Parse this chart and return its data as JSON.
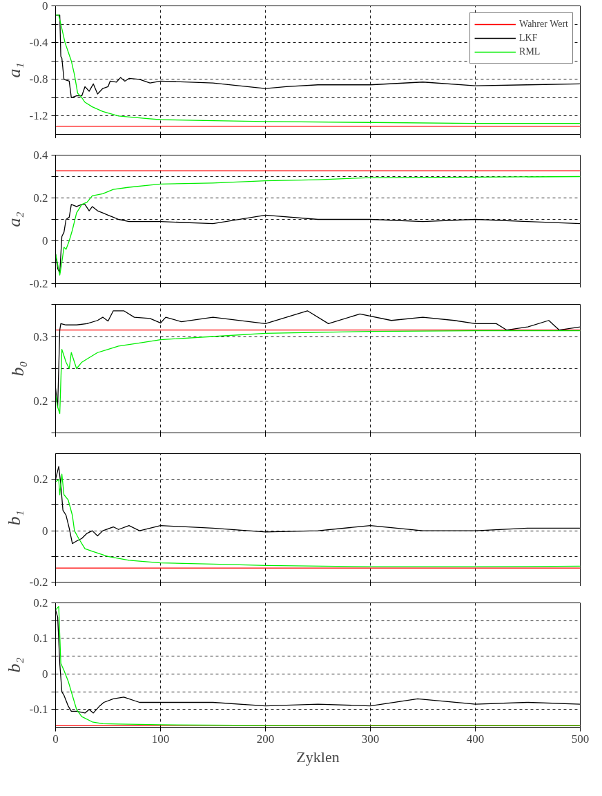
{
  "chart_data": [
    {
      "type": "line",
      "ylabel": "a₁",
      "xlim": [
        0,
        500
      ],
      "xticks": [
        0,
        100,
        200,
        300,
        400,
        500
      ],
      "ylim": [
        -1.4,
        0
      ],
      "yticks": [
        0,
        {
          "value": -0.2,
          "label": null
        },
        -0.4,
        {
          "value": -0.6,
          "label": null
        },
        -0.8,
        {
          "value": -1.0,
          "label": null
        },
        -1.2
      ],
      "grid": true,
      "legend": "top right",
      "tick_labels": "y",
      "series": [
        {
          "name": "Wahrer Wert",
          "color": "#ff0000",
          "x": [
            0,
            500
          ],
          "values": [
            -1.31,
            -1.31
          ]
        },
        {
          "name": "LKF",
          "color": "#000000",
          "x": [
            0,
            4,
            5,
            6,
            8,
            13,
            15,
            20,
            25,
            28,
            32,
            36,
            40,
            45,
            50,
            52,
            58,
            62,
            66,
            70,
            80,
            90,
            100,
            150,
            200,
            220,
            250,
            300,
            350,
            400,
            450,
            500
          ],
          "values": [
            -0.1,
            -0.1,
            -0.55,
            -0.57,
            -0.8,
            -0.82,
            -1.0,
            -0.98,
            -0.98,
            -0.88,
            -0.93,
            -0.85,
            -0.96,
            -0.9,
            -0.88,
            -0.82,
            -0.83,
            -0.78,
            -0.82,
            -0.79,
            -0.8,
            -0.84,
            -0.82,
            -0.84,
            -0.9,
            -0.88,
            -0.86,
            -0.86,
            -0.83,
            -0.87,
            -0.86,
            -0.85
          ]
        },
        {
          "name": "RML",
          "color": "#00ee00",
          "x": [
            0,
            3,
            6,
            9,
            12,
            15,
            18,
            21,
            25,
            28,
            35,
            45,
            60,
            80,
            100,
            150,
            200,
            300,
            400,
            500
          ],
          "values": [
            -0.1,
            -0.1,
            -0.25,
            -0.4,
            -0.5,
            -0.6,
            -0.75,
            -0.95,
            -1.0,
            -1.05,
            -1.1,
            -1.15,
            -1.2,
            -1.22,
            -1.24,
            -1.25,
            -1.26,
            -1.27,
            -1.28,
            -1.28
          ]
        }
      ]
    },
    {
      "type": "line",
      "ylabel": "a₂",
      "xlim": [
        0,
        500
      ],
      "xticks": [
        0,
        100,
        200,
        300,
        400,
        500
      ],
      "ylim": [
        -0.2,
        0.4
      ],
      "yticks": [
        0.4,
        {
          "value": 0.3,
          "label": null
        },
        0.2,
        {
          "value": 0.1,
          "label": null
        },
        0,
        {
          "value": -0.1,
          "label": null
        },
        -0.2
      ],
      "grid": true,
      "tick_labels": "y",
      "series": [
        {
          "color": "#ff0000",
          "x": [
            0,
            500
          ],
          "values": [
            0.327,
            0.327
          ]
        },
        {
          "color": "#000000",
          "x": [
            0,
            2,
            4,
            6,
            8,
            10,
            13,
            15,
            20,
            25,
            28,
            32,
            35,
            40,
            45,
            50,
            55,
            60,
            70,
            80,
            100,
            150,
            200,
            250,
            300,
            350,
            400,
            450,
            500
          ],
          "values": [
            -0.06,
            -0.13,
            -0.15,
            0.02,
            0.04,
            0.1,
            0.11,
            0.17,
            0.16,
            0.17,
            0.17,
            0.14,
            0.16,
            0.14,
            0.13,
            0.12,
            0.11,
            0.1,
            0.09,
            0.09,
            0.09,
            0.08,
            0.12,
            0.1,
            0.1,
            0.09,
            0.1,
            0.09,
            0.08
          ]
        },
        {
          "color": "#00ee00",
          "x": [
            0,
            4,
            6,
            8,
            10,
            13,
            16,
            20,
            25,
            30,
            35,
            45,
            55,
            70,
            90,
            100,
            150,
            200,
            250,
            300,
            400,
            500
          ],
          "values": [
            -0.06,
            -0.16,
            -0.1,
            -0.03,
            -0.04,
            0.0,
            0.05,
            0.13,
            0.17,
            0.18,
            0.21,
            0.22,
            0.24,
            0.25,
            0.26,
            0.265,
            0.27,
            0.28,
            0.285,
            0.295,
            0.297,
            0.3
          ]
        }
      ]
    },
    {
      "type": "line",
      "ylabel": "b₀",
      "xlim": [
        0,
        500
      ],
      "xticks": [
        0,
        100,
        200,
        300,
        400,
        500
      ],
      "ylim": [
        0.15,
        0.35
      ],
      "yticks": [
        {
          "value": 0.35,
          "label": null
        },
        0.3,
        {
          "value": 0.25,
          "label": null
        },
        0.2,
        {
          "value": 0.15,
          "label": null
        }
      ],
      "grid": true,
      "tick_labels": "y",
      "series": [
        {
          "color": "#ff0000",
          "x": [
            0,
            500
          ],
          "values": [
            0.31,
            0.31
          ]
        },
        {
          "color": "#000000",
          "x": [
            0,
            2,
            4,
            5,
            10,
            20,
            30,
            40,
            45,
            50,
            55,
            65,
            75,
            90,
            100,
            105,
            120,
            150,
            200,
            220,
            240,
            260,
            290,
            320,
            350,
            380,
            400,
            420,
            430,
            450,
            470,
            480,
            500
          ],
          "values": [
            0.22,
            0.19,
            0.31,
            0.32,
            0.318,
            0.318,
            0.32,
            0.325,
            0.33,
            0.324,
            0.34,
            0.34,
            0.33,
            0.328,
            0.321,
            0.33,
            0.323,
            0.33,
            0.32,
            0.33,
            0.34,
            0.32,
            0.335,
            0.325,
            0.33,
            0.325,
            0.32,
            0.32,
            0.31,
            0.315,
            0.325,
            0.31,
            0.315
          ]
        },
        {
          "color": "#00ee00",
          "x": [
            0,
            2,
            4,
            6,
            10,
            13,
            15,
            18,
            20,
            25,
            30,
            40,
            50,
            60,
            80,
            100,
            150,
            200,
            300,
            400,
            500
          ],
          "values": [
            0.21,
            0.19,
            0.18,
            0.28,
            0.26,
            0.25,
            0.275,
            0.26,
            0.25,
            0.26,
            0.265,
            0.275,
            0.28,
            0.285,
            0.29,
            0.295,
            0.3,
            0.305,
            0.308,
            0.309,
            0.309
          ]
        }
      ]
    },
    {
      "type": "line",
      "ylabel": "b₁",
      "xlim": [
        0,
        500
      ],
      "xticks": [
        0,
        100,
        200,
        300,
        400,
        500
      ],
      "ylim": [
        -0.2,
        0.3
      ],
      "yticks": [
        0.2,
        {
          "value": 0.1,
          "label": null
        },
        0,
        {
          "value": -0.1,
          "label": null
        },
        -0.2
      ],
      "grid": true,
      "tick_labels": "y",
      "series": [
        {
          "color": "#ff0000",
          "x": [
            0,
            500
          ],
          "values": [
            -0.145,
            -0.145
          ]
        },
        {
          "color": "#000000",
          "x": [
            0,
            3,
            5,
            7,
            10,
            13,
            16,
            20,
            25,
            30,
            35,
            40,
            45,
            55,
            60,
            70,
            80,
            100,
            150,
            200,
            250,
            300,
            350,
            400,
            450,
            500
          ],
          "values": [
            0.2,
            0.25,
            0.18,
            0.08,
            0.06,
            0.01,
            -0.05,
            -0.04,
            -0.03,
            -0.01,
            0.0,
            -0.02,
            0.0,
            0.015,
            0.005,
            0.02,
            0.0,
            0.02,
            0.01,
            -0.005,
            0.0,
            0.02,
            0.0,
            0.0,
            0.01,
            0.01
          ]
        },
        {
          "color": "#00ee00",
          "x": [
            0,
            3,
            4,
            6,
            8,
            12,
            16,
            18,
            22,
            28,
            35,
            50,
            70,
            100,
            150,
            200,
            300,
            400,
            500
          ],
          "values": [
            0.19,
            0.2,
            0.14,
            0.22,
            0.14,
            0.12,
            0.06,
            0.0,
            -0.03,
            -0.07,
            -0.08,
            -0.1,
            -0.115,
            -0.125,
            -0.13,
            -0.135,
            -0.14,
            -0.14,
            -0.138
          ]
        }
      ]
    },
    {
      "type": "line",
      "ylabel": "b₂",
      "xlabel": "Zyklen",
      "xlim": [
        0,
        500
      ],
      "xticks": [
        0,
        100,
        200,
        300,
        400,
        500
      ],
      "ylim": [
        -0.15,
        0.2
      ],
      "yticks": [
        0.2,
        {
          "value": 0.15,
          "label": null
        },
        0.1,
        {
          "value": 0.05,
          "label": null
        },
        0,
        {
          "value": -0.05,
          "label": null
        },
        -0.1
      ],
      "grid": true,
      "series": [
        {
          "color": "#ff0000",
          "x": [
            0,
            500
          ],
          "values": [
            -0.145,
            -0.145
          ]
        },
        {
          "color": "#000000",
          "x": [
            0,
            2,
            4,
            6,
            8,
            12,
            15,
            20,
            28,
            32,
            36,
            42,
            46,
            55,
            65,
            80,
            100,
            150,
            200,
            250,
            300,
            345,
            400,
            450,
            500
          ],
          "values": [
            0.18,
            0.16,
            0.03,
            -0.05,
            -0.06,
            -0.09,
            -0.105,
            -0.105,
            -0.11,
            -0.1,
            -0.11,
            -0.09,
            -0.08,
            -0.07,
            -0.065,
            -0.08,
            -0.08,
            -0.08,
            -0.09,
            -0.085,
            -0.09,
            -0.07,
            -0.085,
            -0.08,
            -0.085
          ]
        },
        {
          "color": "#00ee00",
          "x": [
            0,
            3,
            5,
            8,
            12,
            16,
            20,
            25,
            35,
            45,
            60,
            100,
            200,
            300,
            500
          ],
          "values": [
            0.18,
            0.19,
            0.03,
            0.01,
            -0.02,
            -0.06,
            -0.1,
            -0.12,
            -0.135,
            -0.14,
            -0.141,
            -0.143,
            -0.145,
            -0.146,
            -0.146
          ]
        }
      ]
    }
  ]
}
